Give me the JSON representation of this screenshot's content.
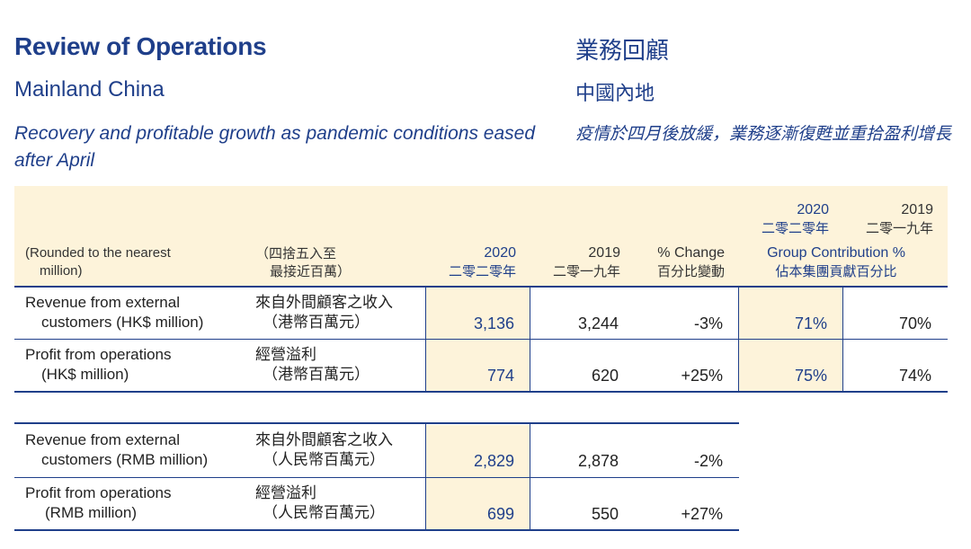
{
  "header": {
    "title_en": "Review of Operations",
    "title_zh": "業務回顧",
    "subtitle_en": "Mainland China",
    "subtitle_zh": "中國內地",
    "tagline_en": "Recovery and profitable growth as pandemic conditions eased after April",
    "tagline_zh": "疫情於四月後放緩，業務逐漸復甦並重拾盈利增長"
  },
  "table_hk": {
    "columns": {
      "label_en_1": "(Rounded to the nearest",
      "label_en_2": "million)",
      "label_zh_1": "（四捨五入至",
      "label_zh_2": "最接近百萬）",
      "y2020": "2020",
      "y2020_zh": "二零二零年",
      "y2019": "2019",
      "y2019_zh": "二零一九年",
      "change": "% Change",
      "change_zh": "百分比變動",
      "gc_2020": "2020",
      "gc_2020_zh": "二零二零年",
      "gc_2019": "2019",
      "gc_2019_zh": "二零一九年",
      "gc_label": "Group Contribution %",
      "gc_label_zh": "佔本集團貢獻百分比"
    },
    "rows": [
      {
        "en_1": "Revenue from external",
        "en_2": "customers (HK$ million)",
        "zh_1": "來自外間顧客之收入",
        "zh_2": "（港幣百萬元）",
        "v2020": "3,136",
        "v2019": "3,244",
        "change": "-3%",
        "gc2020": "71%",
        "gc2019": "70%"
      },
      {
        "en_1": "Profit from operations",
        "en_2": "(HK$ million)",
        "zh_1": "經營溢利",
        "zh_2": "（港幣百萬元）",
        "v2020": "774",
        "v2019": "620",
        "change": "+25%",
        "gc2020": "75%",
        "gc2019": "74%"
      }
    ]
  },
  "table_rmb": {
    "rows": [
      {
        "en_1": "Revenue from external",
        "en_2": "customers (RMB million)",
        "zh_1": "來自外間顧客之收入",
        "zh_2": "（人民幣百萬元）",
        "v2020": "2,829",
        "v2019": "2,878",
        "change": "-2%"
      },
      {
        "en_1": "Profit from operations",
        "en_2": "(RMB million)",
        "zh_1": "經營溢利",
        "zh_2": "（人民幣百萬元）",
        "v2020": "699",
        "v2019": "550",
        "change": "+27%"
      }
    ]
  }
}
